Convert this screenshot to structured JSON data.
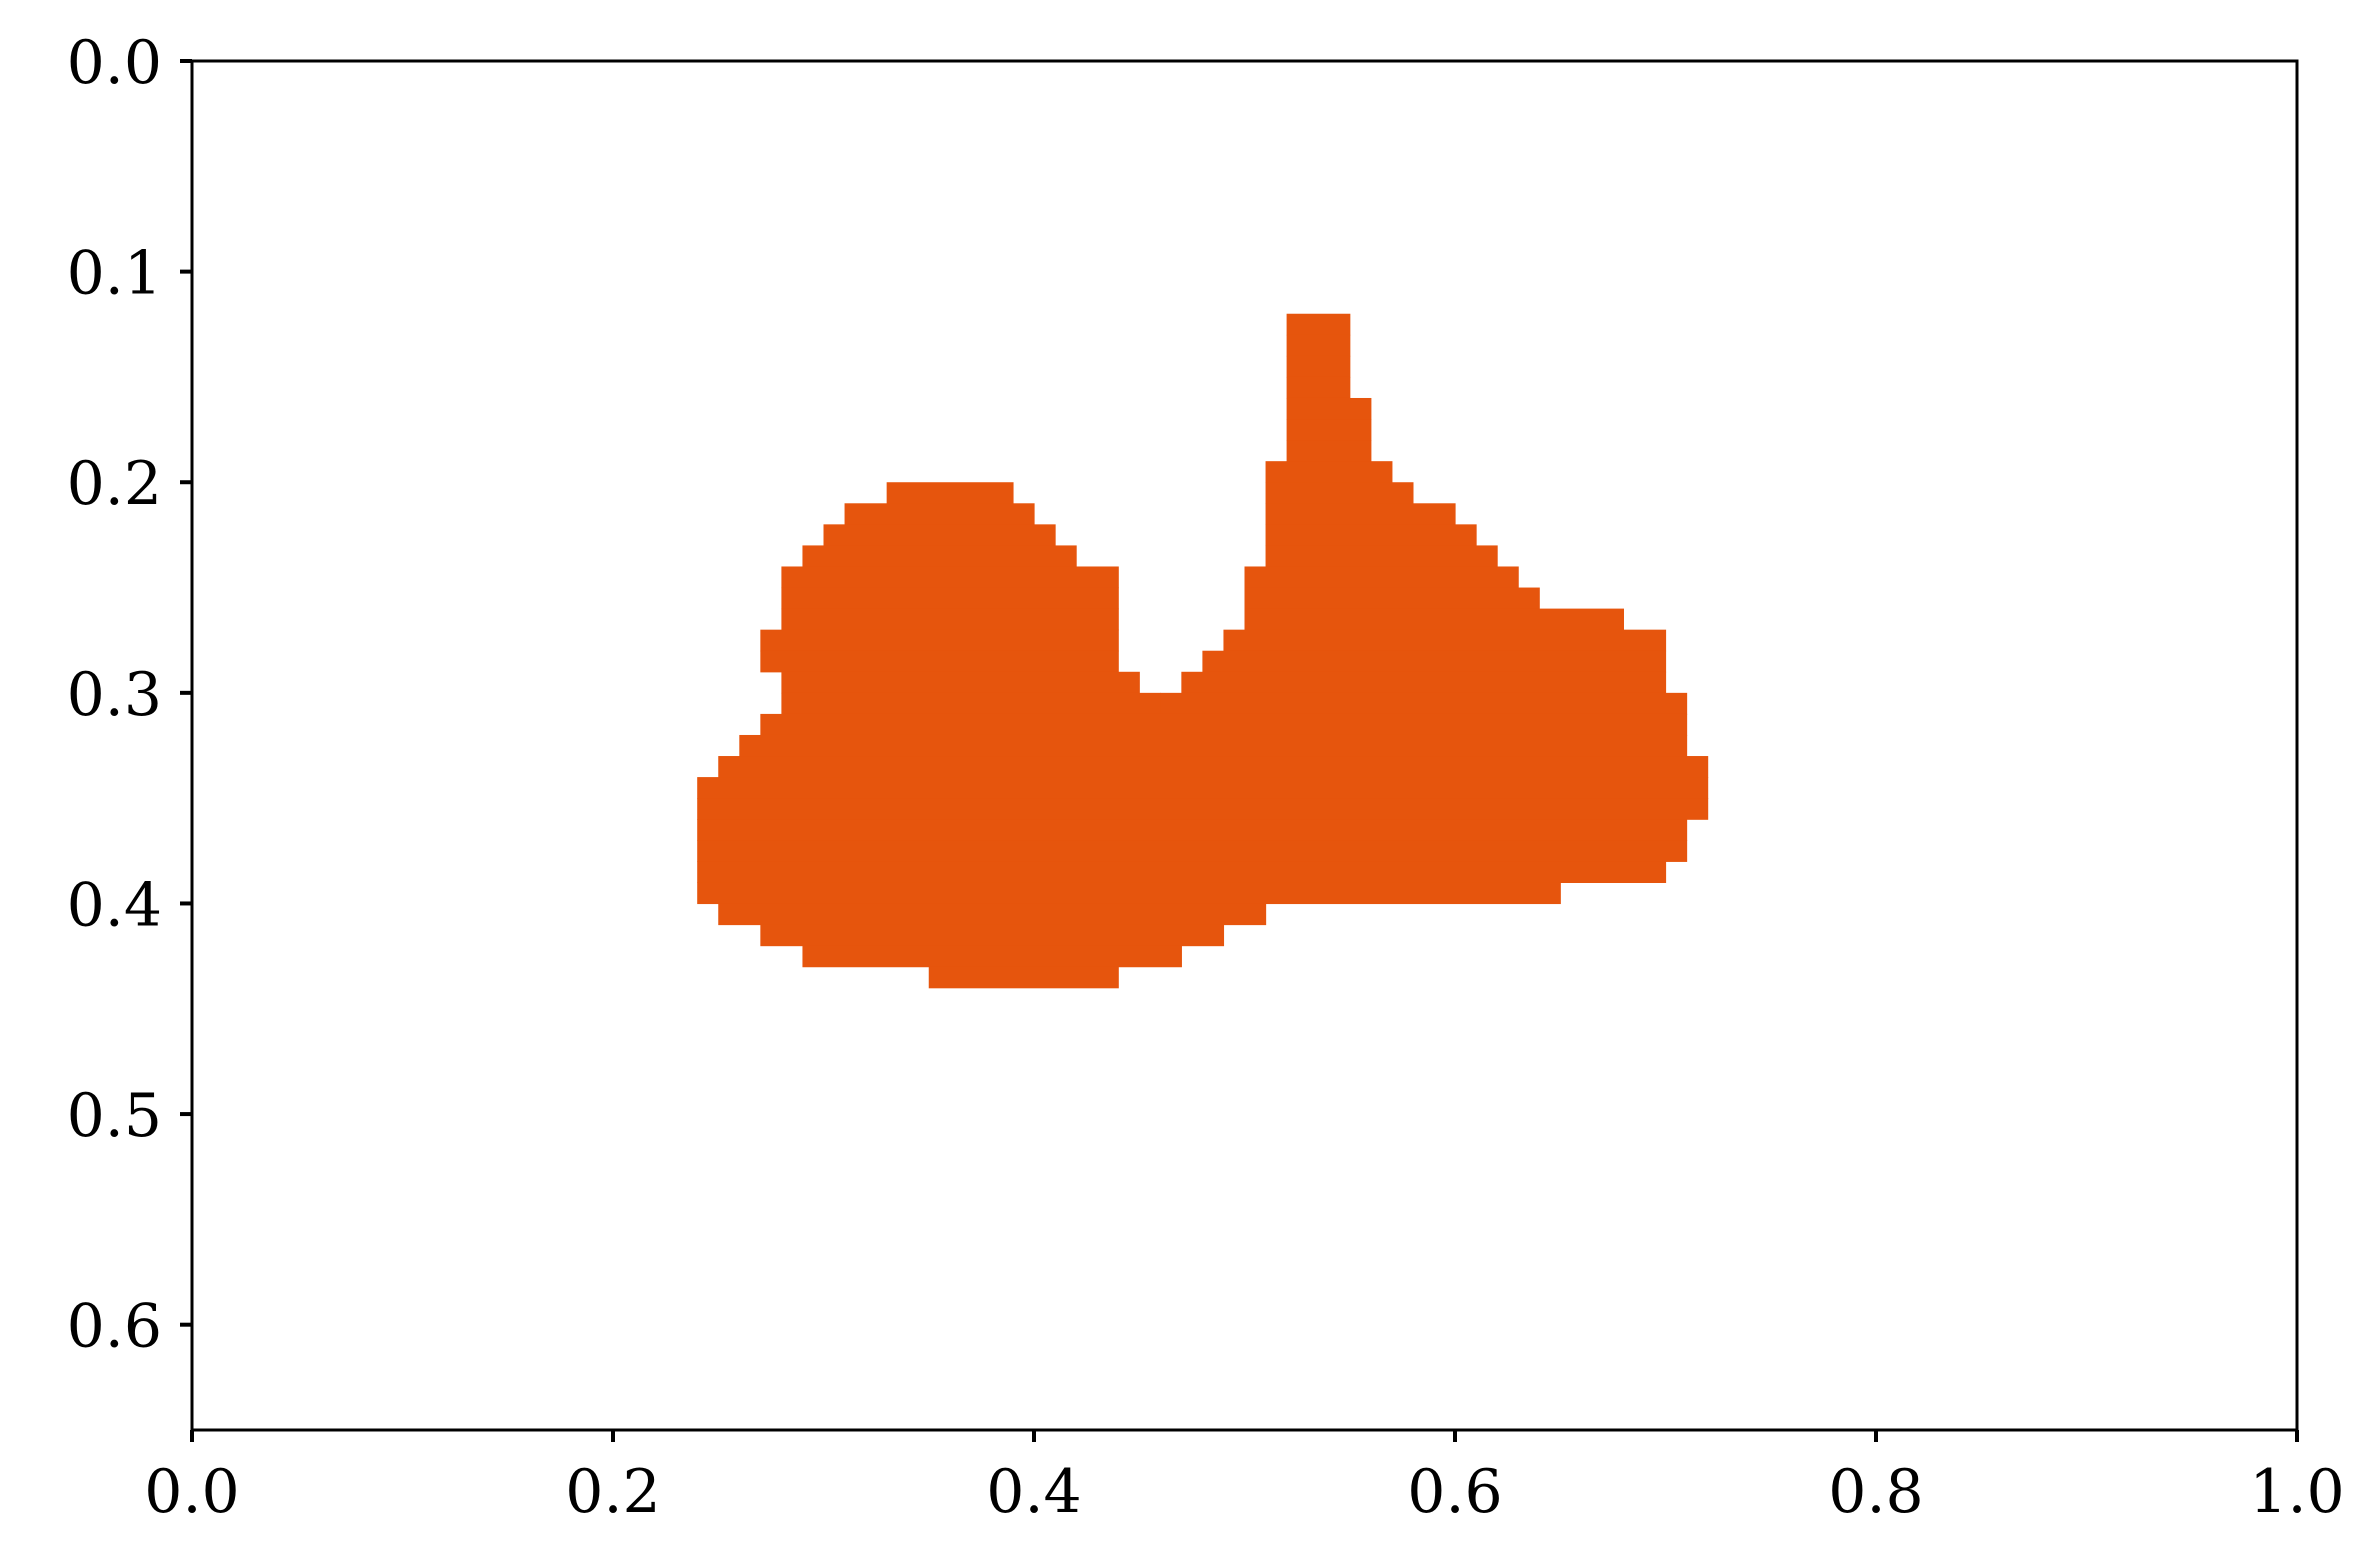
{
  "chart_data": {
    "type": "heatmap",
    "title": "",
    "xlabel": "",
    "ylabel": "",
    "xlim": [
      0.0,
      1.0
    ],
    "ylim": [
      0.65,
      0.0
    ],
    "y_inverted": true,
    "grid": false,
    "legend": "none",
    "x_ticks": [
      "0.0",
      "0.2",
      "0.4",
      "0.6",
      "0.8",
      "1.0"
    ],
    "y_ticks": [
      "0.0",
      "0.1",
      "0.2",
      "0.3",
      "0.4",
      "0.5",
      "0.6"
    ],
    "cell_size": 0.01,
    "fill_color": "#e6550d",
    "mask_rows": [
      {
        "y": 0.12,
        "spans": [
          [
            0.52,
            0.54
          ]
        ]
      },
      {
        "y": 0.13,
        "spans": [
          [
            0.52,
            0.54
          ]
        ]
      },
      {
        "y": 0.14,
        "spans": [
          [
            0.52,
            0.54
          ]
        ]
      },
      {
        "y": 0.15,
        "spans": [
          [
            0.52,
            0.54
          ]
        ]
      },
      {
        "y": 0.16,
        "spans": [
          [
            0.52,
            0.55
          ]
        ]
      },
      {
        "y": 0.17,
        "spans": [
          [
            0.52,
            0.55
          ]
        ]
      },
      {
        "y": 0.18,
        "spans": [
          [
            0.52,
            0.55
          ]
        ]
      },
      {
        "y": 0.19,
        "spans": [
          [
            0.51,
            0.56
          ]
        ]
      },
      {
        "y": 0.2,
        "spans": [
          [
            0.33,
            0.38
          ],
          [
            0.51,
            0.57
          ]
        ]
      },
      {
        "y": 0.21,
        "spans": [
          [
            0.31,
            0.39
          ],
          [
            0.51,
            0.59
          ]
        ]
      },
      {
        "y": 0.22,
        "spans": [
          [
            0.3,
            0.4
          ],
          [
            0.51,
            0.6
          ]
        ]
      },
      {
        "y": 0.23,
        "spans": [
          [
            0.29,
            0.41
          ],
          [
            0.51,
            0.61
          ]
        ]
      },
      {
        "y": 0.24,
        "spans": [
          [
            0.28,
            0.43
          ],
          [
            0.5,
            0.62
          ]
        ]
      },
      {
        "y": 0.25,
        "spans": [
          [
            0.28,
            0.43
          ],
          [
            0.5,
            0.63
          ]
        ]
      },
      {
        "y": 0.26,
        "spans": [
          [
            0.28,
            0.43
          ],
          [
            0.5,
            0.67
          ]
        ]
      },
      {
        "y": 0.27,
        "spans": [
          [
            0.27,
            0.43
          ],
          [
            0.49,
            0.69
          ]
        ]
      },
      {
        "y": 0.28,
        "spans": [
          [
            0.27,
            0.43
          ],
          [
            0.48,
            0.69
          ]
        ]
      },
      {
        "y": 0.29,
        "spans": [
          [
            0.28,
            0.44
          ],
          [
            0.47,
            0.69
          ]
        ]
      },
      {
        "y": 0.3,
        "spans": [
          [
            0.28,
            0.45
          ],
          [
            0.46,
            0.7
          ]
        ]
      },
      {
        "y": 0.31,
        "spans": [
          [
            0.27,
            0.7
          ]
        ]
      },
      {
        "y": 0.32,
        "spans": [
          [
            0.26,
            0.7
          ]
        ]
      },
      {
        "y": 0.33,
        "spans": [
          [
            0.25,
            0.71
          ]
        ]
      },
      {
        "y": 0.34,
        "spans": [
          [
            0.24,
            0.71
          ]
        ]
      },
      {
        "y": 0.35,
        "spans": [
          [
            0.24,
            0.71
          ]
        ]
      },
      {
        "y": 0.36,
        "spans": [
          [
            0.24,
            0.7
          ]
        ]
      },
      {
        "y": 0.37,
        "spans": [
          [
            0.24,
            0.7
          ]
        ]
      },
      {
        "y": 0.38,
        "spans": [
          [
            0.24,
            0.69
          ]
        ]
      },
      {
        "y": 0.39,
        "spans": [
          [
            0.24,
            0.64
          ]
        ]
      },
      {
        "y": 0.4,
        "spans": [
          [
            0.25,
            0.5
          ]
        ]
      },
      {
        "y": 0.41,
        "spans": [
          [
            0.27,
            0.48
          ]
        ]
      },
      {
        "y": 0.42,
        "spans": [
          [
            0.29,
            0.46
          ]
        ]
      },
      {
        "y": 0.43,
        "spans": [
          [
            0.35,
            0.43
          ]
        ]
      }
    ]
  }
}
